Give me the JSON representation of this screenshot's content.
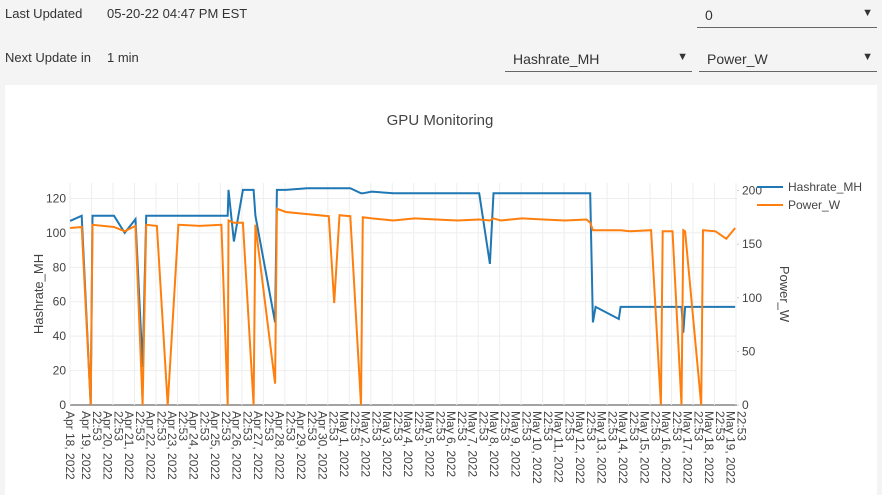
{
  "header": {
    "last_updated_label": "Last Updated",
    "last_updated_value": "05-20-22 04:47 PM EST",
    "next_update_label": "Next Update in",
    "next_update_value": "1 min"
  },
  "controls": {
    "gpu": "0",
    "left_metric": "Hashrate_MH",
    "right_metric": "Power_W"
  },
  "chart_data": {
    "type": "line",
    "title": "GPU Monitoring",
    "ylabel": "Hashrate_MH",
    "y2label": "Power_W",
    "x": [
      "2022-04-18 23:00",
      "2022-04-19 12:00",
      "2022-04-19 22:00",
      "2022-04-20 00:00",
      "2022-04-21 00:00",
      "2022-04-21 12:00",
      "2022-04-22 00:00",
      "2022-04-22 08:00",
      "2022-04-22 12:00",
      "2022-04-23 00:00",
      "2022-04-23 12:00",
      "2022-04-24 00:00",
      "2022-04-25 00:00",
      "2022-04-26 00:00",
      "2022-04-26 07:00",
      "2022-04-26 08:00",
      "2022-04-26 14:00",
      "2022-04-27 00:00",
      "2022-04-27 12:00",
      "2022-04-27 14:00",
      "2022-04-28 12:00",
      "2022-04-28 14:00",
      "2022-04-29 00:00",
      "2022-04-30 00:00",
      "2022-05-01 00:00",
      "2022-05-01 06:00",
      "2022-05-01 12:00",
      "2022-05-02 00:00",
      "2022-05-02 12:00",
      "2022-05-02 14:00",
      "2022-05-03 00:00",
      "2022-05-04 00:00",
      "2022-05-05 00:00",
      "2022-05-06 00:00",
      "2022-05-07 00:00",
      "2022-05-08 00:00",
      "2022-05-08 12:00",
      "2022-05-08 16:00",
      "2022-05-09 00:00",
      "2022-05-10 00:00",
      "2022-05-11 00:00",
      "2022-05-12 00:00",
      "2022-05-13 00:00",
      "2022-05-13 04:00",
      "2022-05-13 07:00",
      "2022-05-13 10:00",
      "2022-05-14 12:00",
      "2022-05-14 14:00",
      "2022-05-15 00:00",
      "2022-05-16 00:00",
      "2022-05-16 11:00",
      "2022-05-16 13:00",
      "2022-05-17 00:00",
      "2022-05-17 10:00",
      "2022-05-17 12:00",
      "2022-05-17 14:00",
      "2022-05-18 08:00",
      "2022-05-18 10:00",
      "2022-05-19 00:00",
      "2022-05-19 12:00",
      "2022-05-19 22:00"
    ],
    "series": [
      {
        "name": "Hashrate_MH",
        "color": "#1f77b4",
        "axis": "y",
        "values": [
          107,
          110,
          0,
          110,
          110,
          100,
          108,
          22,
          110,
          110,
          110,
          110,
          110,
          110,
          110,
          125,
          95,
          125,
          125,
          110,
          48,
          125,
          125,
          126,
          126,
          126,
          126,
          126,
          123,
          123,
          124,
          123,
          123,
          123,
          123,
          123,
          82,
          123,
          123,
          123,
          123,
          123,
          123,
          123,
          48,
          57,
          50,
          57,
          57,
          57,
          57,
          57,
          57,
          57,
          42,
          57,
          57,
          57,
          57,
          57,
          57
        ]
      },
      {
        "name": "Power_W",
        "color": "#ff7f0e",
        "axis": "y2",
        "values": [
          165,
          166,
          0,
          168,
          166,
          162,
          167,
          0,
          168,
          167,
          0,
          168,
          167,
          168,
          0,
          172,
          170,
          170,
          0,
          168,
          20,
          183,
          180,
          178,
          176,
          95,
          177,
          176,
          0,
          175,
          174,
          172,
          174,
          173,
          172,
          173,
          172,
          174,
          172,
          174,
          173,
          172,
          173,
          170,
          163,
          163,
          163,
          163,
          162,
          163,
          0,
          162,
          162,
          0,
          163,
          162,
          0,
          163,
          162,
          155,
          165
        ]
      }
    ],
    "xlim": [
      "2022-04-18 22:53",
      "2022-05-20 00:00"
    ],
    "xticks": [
      {
        "value": "2022-04-18 22:53",
        "label": "Apr 18, 2022"
      },
      {
        "value": "2022-04-19 22:53",
        "label": "22:53\nApr 19, 2022"
      },
      {
        "value": "2022-04-20 22:53",
        "label": "22:53\nApr 20, 2022"
      },
      {
        "value": "2022-04-21 22:53",
        "label": "22:53\nApr 21, 2022"
      },
      {
        "value": "2022-04-22 22:53",
        "label": "22:53\nApr 22, 2022"
      },
      {
        "value": "2022-04-23 22:53",
        "label": "22:53\nApr 23, 2022"
      },
      {
        "value": "2022-04-24 22:53",
        "label": "22:53\nApr 24, 2022"
      },
      {
        "value": "2022-04-25 22:53",
        "label": "22:53\nApr 25, 2022"
      },
      {
        "value": "2022-04-26 22:53",
        "label": "22:53\nApr 26, 2022"
      },
      {
        "value": "2022-04-27 22:53",
        "label": "22:53\nApr 27, 2022"
      },
      {
        "value": "2022-04-28 22:53",
        "label": "22:53\nApr 28, 2022"
      },
      {
        "value": "2022-04-29 22:53",
        "label": "22:53\nApr 29, 2022"
      },
      {
        "value": "2022-04-30 22:53",
        "label": "22:53\nApr 30, 2022"
      },
      {
        "value": "2022-05-01 22:53",
        "label": "22:53\nMay 1, 2022"
      },
      {
        "value": "2022-05-02 22:53",
        "label": "22:53\nMay 2, 2022"
      },
      {
        "value": "2022-05-03 22:53",
        "label": "22:53\nMay 3, 2022"
      },
      {
        "value": "2022-05-04 22:53",
        "label": "22:53\nMay 4, 2022"
      },
      {
        "value": "2022-05-05 22:53",
        "label": "22:53\nMay 5, 2022"
      },
      {
        "value": "2022-05-06 22:53",
        "label": "22:53\nMay 6, 2022"
      },
      {
        "value": "2022-05-07 22:53",
        "label": "22:53\nMay 7, 2022"
      },
      {
        "value": "2022-05-08 22:53",
        "label": "22:53\nMay 8, 2022"
      },
      {
        "value": "2022-05-09 22:53",
        "label": "22:53\nMay 9, 2022"
      },
      {
        "value": "2022-05-10 22:53",
        "label": "22:53\nMay 10, 2022"
      },
      {
        "value": "2022-05-11 22:53",
        "label": "22:53\nMay 11, 2022"
      },
      {
        "value": "2022-05-12 22:53",
        "label": "22:53\nMay 12, 2022"
      },
      {
        "value": "2022-05-13 22:53",
        "label": "22:53\nMay 13, 2022"
      },
      {
        "value": "2022-05-14 22:53",
        "label": "22:53\nMay 14, 2022"
      },
      {
        "value": "2022-05-15 22:53",
        "label": "22:53\nMay 15, 2022"
      },
      {
        "value": "2022-05-16 22:53",
        "label": "22:53\nMay 16, 2022"
      },
      {
        "value": "2022-05-17 22:53",
        "label": "22:53\nMay 17, 2022"
      },
      {
        "value": "2022-05-18 22:53",
        "label": "22:53\nMay 18, 2022"
      },
      {
        "value": "2022-05-19 22:53",
        "label": "22:53\nMay 19, 2022"
      }
    ],
    "ylim": [
      0,
      129
    ],
    "yticks": [
      0,
      20,
      40,
      60,
      80,
      100,
      120
    ],
    "y2lim": [
      0,
      207
    ],
    "y2ticks": [
      0,
      50,
      100,
      150,
      200
    ],
    "grid": true,
    "legend": "top-right"
  }
}
